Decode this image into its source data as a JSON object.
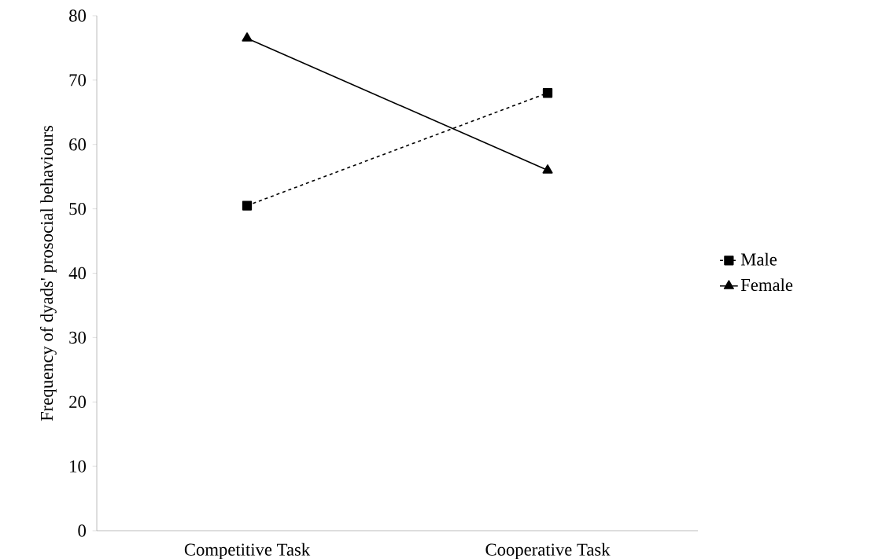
{
  "chart_data": {
    "type": "line",
    "ylabel": "Frequency of dyads' prosocial behaviours",
    "categories": [
      "Competitive Task",
      "Cooperative Task"
    ],
    "series": [
      {
        "name": "Male",
        "color": "#000000",
        "values": [
          50.5,
          68
        ],
        "marker": "square",
        "line_style": "dashed"
      },
      {
        "name": "Female",
        "color": "#000000",
        "values": [
          76.5,
          56
        ],
        "marker": "triangle",
        "line_style": "solid"
      }
    ],
    "ylim": [
      0,
      80
    ],
    "yticks": [
      0,
      10,
      20,
      30,
      40,
      50,
      60,
      70,
      80
    ],
    "grid": false,
    "legend": "right"
  }
}
